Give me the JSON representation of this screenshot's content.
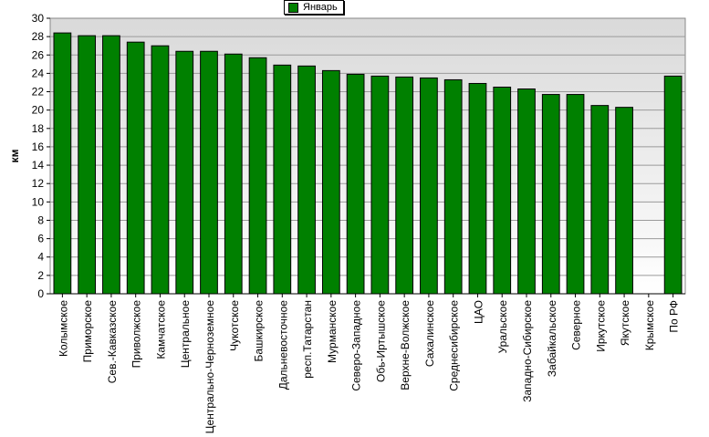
{
  "chart_data": {
    "type": "bar",
    "ylabel": "км",
    "ylim": [
      0,
      30
    ],
    "yticks": [
      0,
      2,
      4,
      6,
      8,
      10,
      12,
      14,
      16,
      18,
      20,
      22,
      24,
      26,
      28,
      30
    ],
    "grid": true,
    "legend_position": "top-center",
    "bar_color": "#008000",
    "categories": [
      "Колымское",
      "Приморское",
      "Сев.-Кавказское",
      "Приволжское",
      "Камчатское",
      "Центральное",
      "Центрально-Черноземное",
      "Чукотское",
      "Башкирское",
      "Дальневосточное",
      "респ.Татарстан",
      "Мурманское",
      "Северо-Западное",
      "Обь-Иртышское",
      "Верхне-Волжское",
      "Сахалинское",
      "Среднесибирское",
      "ЦАО",
      "Уральское",
      "Западно-Сибирское",
      "Забайкальское",
      "Северное",
      "Иркутское",
      "Якутское",
      "Крымское",
      "По РФ"
    ],
    "series": [
      {
        "name": "Январь",
        "values": [
          28.4,
          28.1,
          28.1,
          27.4,
          27.0,
          26.4,
          26.4,
          26.1,
          25.7,
          24.9,
          24.8,
          24.3,
          23.9,
          23.7,
          23.6,
          23.5,
          23.3,
          22.9,
          22.5,
          22.3,
          21.7,
          21.7,
          20.5,
          20.3,
          null,
          23.7
        ]
      }
    ]
  }
}
